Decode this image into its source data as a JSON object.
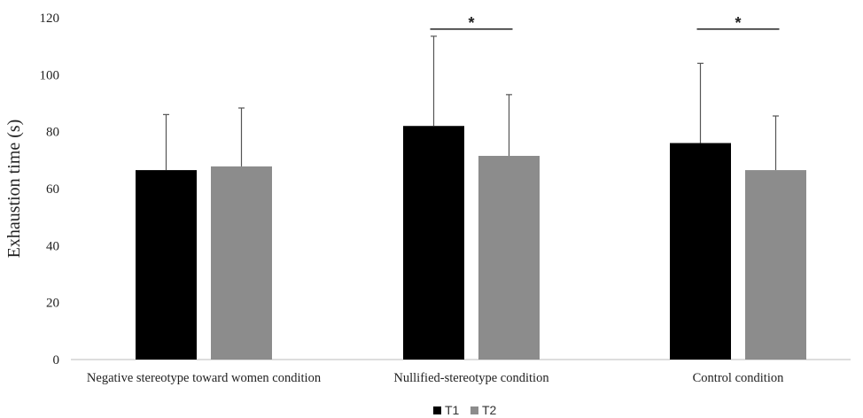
{
  "chart_data": {
    "type": "bar",
    "title": "",
    "xlabel": "",
    "ylabel": "Exhaustion time (s)",
    "ylim": [
      0,
      120
    ],
    "yticks": [
      0,
      20,
      40,
      60,
      80,
      100,
      120
    ],
    "grid": false,
    "legend_position": "bottom-center",
    "categories": [
      "Negative stereotype toward women condition",
      "Nullified-stereotype condition",
      "Control condition"
    ],
    "series": [
      {
        "name": "T1",
        "color": "#000000",
        "values": [
          66.5,
          82,
          76
        ],
        "error_upper": [
          19.5,
          31.5,
          28
        ]
      },
      {
        "name": "T2",
        "color": "#8c8c8c",
        "values": [
          67.8,
          71.5,
          66.5
        ],
        "error_upper": [
          20.5,
          21.5,
          19
        ]
      }
    ],
    "annotations": [
      {
        "category_index": 1,
        "label": "*",
        "bracket_height": 116
      },
      {
        "category_index": 2,
        "label": "*",
        "bracket_height": 116
      }
    ]
  }
}
